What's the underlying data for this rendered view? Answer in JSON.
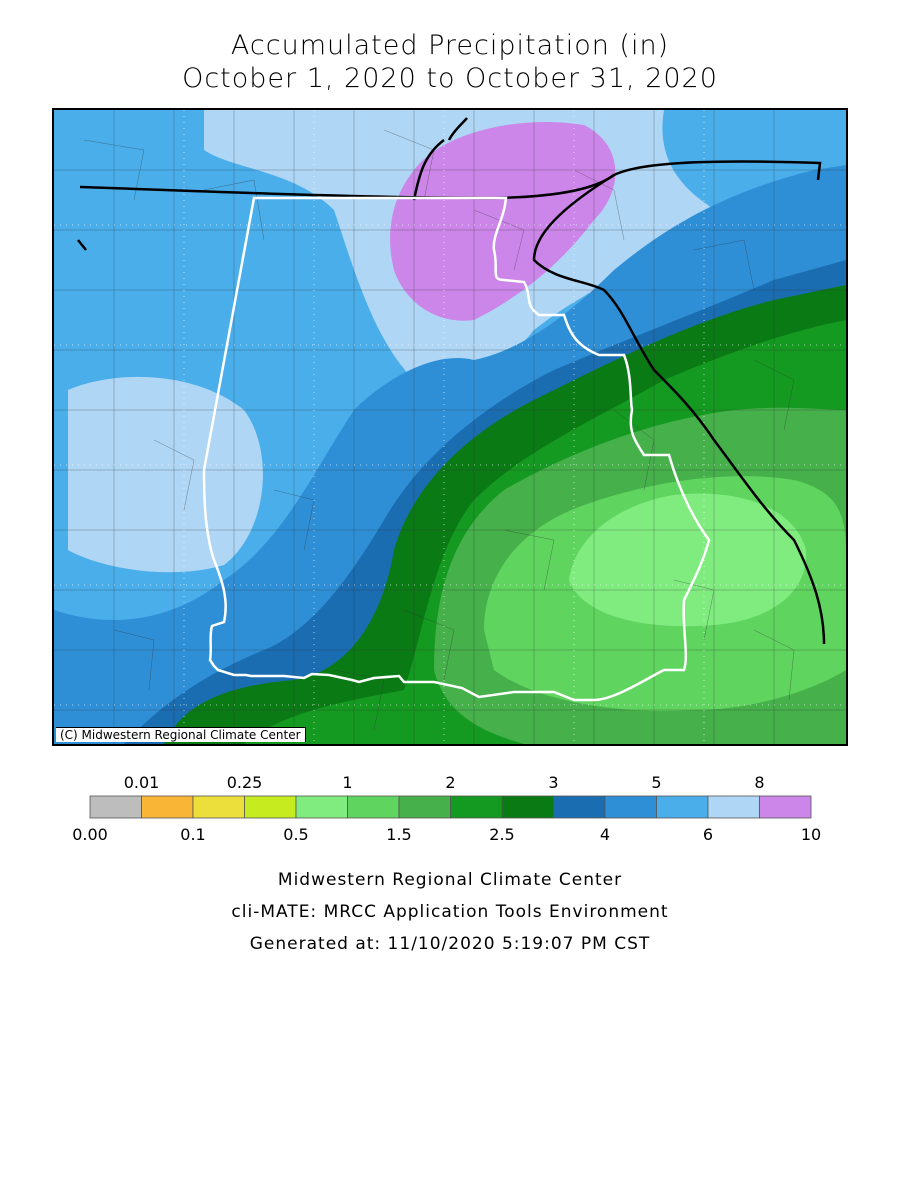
{
  "title": {
    "line1": "Accumulated Precipitation (in)",
    "line2": "October 1, 2020 to October 31, 2020"
  },
  "map": {
    "credit": "(C) Midwestern Regional Climate Center",
    "zones": [
      {
        "range": "6-8",
        "color": "#afd6f5"
      },
      {
        "range": "8-10",
        "color": "#cc85e8"
      },
      {
        "range": "5-6",
        "color": "#4aaeeb"
      },
      {
        "range": "4-5",
        "color": "#2f8fd6"
      },
      {
        "range": "3-4",
        "color": "#1a6db1"
      },
      {
        "range": "2.5-3",
        "color": "#0a7a15"
      },
      {
        "range": "2-2.5",
        "color": "#149a20"
      },
      {
        "range": "1.5-2",
        "color": "#46b04b"
      },
      {
        "range": "1-1.5",
        "color": "#5fd45f"
      },
      {
        "range": "0.5-1",
        "color": "#80ec80"
      }
    ]
  },
  "legend": {
    "top_labels": [
      "0.01",
      "0.25",
      "1",
      "2",
      "3",
      "5",
      "8"
    ],
    "bottom_labels": [
      "0.00",
      "0.1",
      "0.5",
      "1.5",
      "2.5",
      "4",
      "6",
      "10"
    ],
    "colors": [
      "#bdbdbd",
      "#f9b535",
      "#ecdf3c",
      "#c6ec1f",
      "#80ec80",
      "#5fd45f",
      "#46b04b",
      "#149a20",
      "#0a7a15",
      "#1a6db1",
      "#2f8fd6",
      "#4aaeeb",
      "#afd6f5",
      "#cc85e8"
    ]
  },
  "footer": {
    "line1": "Midwestern Regional Climate Center",
    "line2": "cli-MATE: MRCC Application Tools Environment",
    "line3": "Generated at: 11/10/2020 5:19:07 PM CST"
  }
}
